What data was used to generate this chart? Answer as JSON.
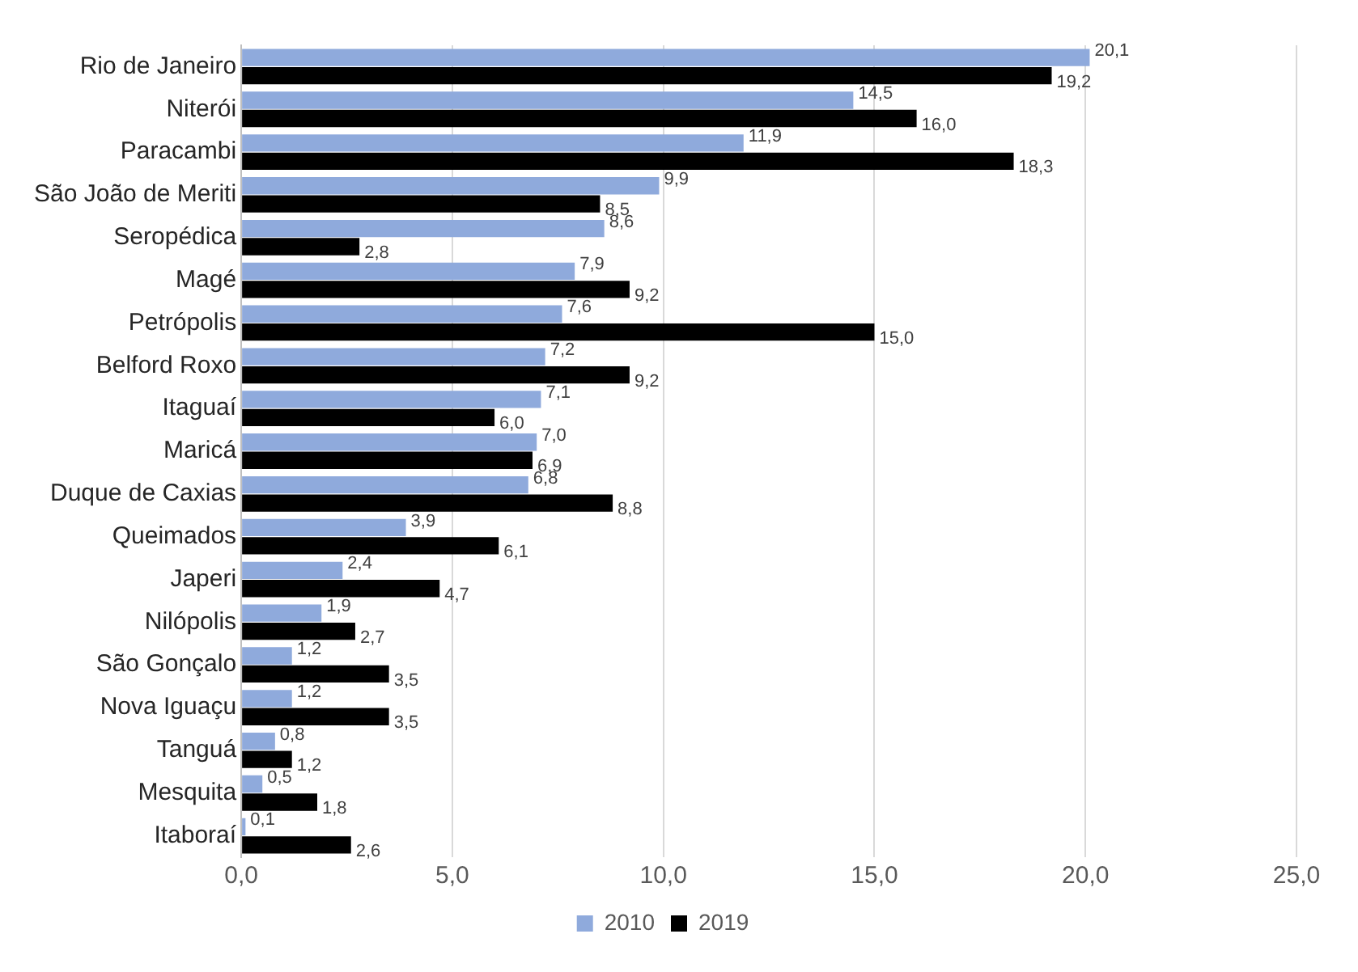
{
  "chart_data": {
    "type": "bar",
    "orientation": "horizontal",
    "categories": [
      "Rio de Janeiro",
      "Niterói",
      "Paracambi",
      "São João de Meriti",
      "Seropédica",
      "Magé",
      "Petrópolis",
      "Belford Roxo",
      "Itaguaí",
      "Maricá",
      "Duque de Caxias",
      "Queimados",
      "Japeri",
      "Nilópolis",
      "São Gonçalo",
      "Nova Iguaçu",
      "Tanguá",
      "Mesquita",
      "Itaboraí"
    ],
    "series": [
      {
        "name": "2010",
        "color": "#8faadc",
        "values": [
          20.1,
          14.5,
          11.9,
          9.9,
          8.6,
          7.9,
          7.6,
          7.2,
          7.1,
          7.0,
          6.8,
          3.9,
          2.4,
          1.9,
          1.2,
          1.2,
          0.8,
          0.5,
          0.1
        ],
        "value_labels": [
          "20,1",
          "14,5",
          "11,9",
          "9,9",
          "8,6",
          "7,9",
          "7,6",
          "7,2",
          "7,1",
          "7,0",
          "6,8",
          "3,9",
          "2,4",
          "1,9",
          "1,2",
          "1,2",
          "0,8",
          "0,5",
          "0,1"
        ]
      },
      {
        "name": "2019",
        "color": "#000000",
        "values": [
          19.2,
          16.0,
          18.3,
          8.5,
          2.8,
          9.2,
          15.0,
          9.2,
          6.0,
          6.9,
          8.8,
          6.1,
          4.7,
          2.7,
          3.5,
          3.5,
          1.2,
          1.8,
          2.6
        ],
        "value_labels": [
          "19,2",
          "16,0",
          "18,3",
          "8,5",
          "2,8",
          "9,2",
          "15,0",
          "9,2",
          "6,0",
          "6,9",
          "8,8",
          "6,1",
          "4,7",
          "2,7",
          "3,5",
          "3,5",
          "1,2",
          "1,8",
          "2,6"
        ]
      }
    ],
    "xlim": [
      0,
      25
    ],
    "xticks": [
      {
        "value": 0,
        "label": "0,0"
      },
      {
        "value": 5,
        "label": "5,0"
      },
      {
        "value": 10,
        "label": "10,0"
      },
      {
        "value": 15,
        "label": "15,0"
      },
      {
        "value": 20,
        "label": "20,0"
      },
      {
        "value": 25,
        "label": "25,0"
      }
    ],
    "grid": "x",
    "legend": "bottom"
  }
}
